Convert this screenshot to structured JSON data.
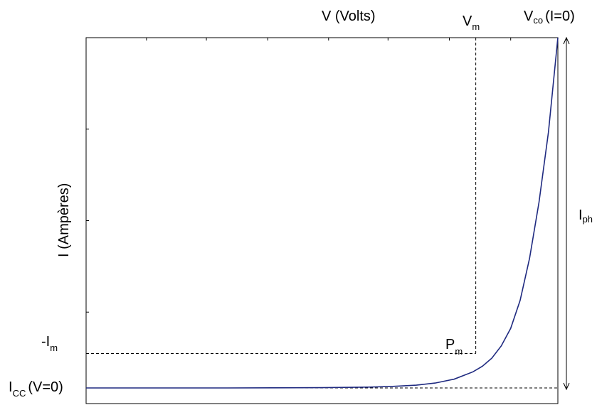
{
  "chart_data": {
    "type": "line",
    "title": "",
    "xlabel": "V (Volts)",
    "ylabel": "I (Ampères)",
    "xlim": [
      0,
      1
    ],
    "ylim": [
      0,
      1
    ],
    "grid": false,
    "series": [
      {
        "color": "#1f2a80",
        "x": [
          0.0,
          0.1,
          0.2,
          0.3,
          0.4,
          0.5,
          0.6,
          0.65,
          0.7,
          0.74,
          0.78,
          0.82,
          0.84,
          0.86,
          0.88,
          0.9,
          0.92,
          0.94,
          0.96,
          0.98,
          1.0
        ],
        "y": [
          0.0,
          0.0,
          0.0,
          0.0,
          0.0003,
          0.0008,
          0.0025,
          0.0045,
          0.008,
          0.014,
          0.025,
          0.046,
          0.062,
          0.085,
          0.12,
          0.17,
          0.25,
          0.37,
          0.53,
          0.73,
          1.0
        ]
      }
    ],
    "annotations": {
      "vm": {
        "main": "V",
        "sub": "m",
        "x": 0.826
      },
      "vco": {
        "main": "V",
        "sub": "co",
        "suffix": "(I=0)",
        "x": 1.0
      },
      "im": {
        "main": "-I",
        "sub": "m",
        "y": 0.0985
      },
      "icc": {
        "main": "I",
        "sub": "CC",
        "suffix": "(V=0)",
        "y": 0.0
      },
      "pm": {
        "main": "P",
        "sub": "m"
      },
      "iph": {
        "main": "I",
        "sub": "ph"
      }
    }
  }
}
